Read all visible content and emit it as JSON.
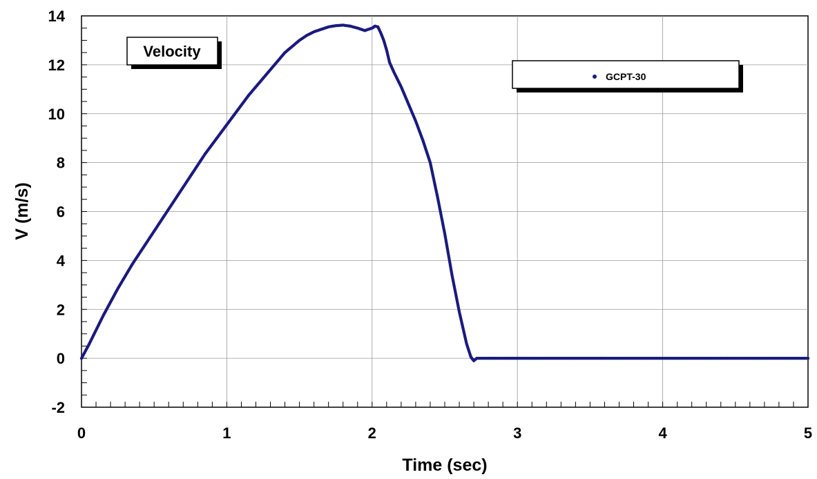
{
  "chart_data": {
    "type": "scatter",
    "title": "Velocity",
    "xlabel": "Time (sec)",
    "ylabel": "V (m/s)",
    "xlim": [
      0,
      5
    ],
    "ylim": [
      -2,
      14
    ],
    "x_ticks": [
      "0",
      "1",
      "2",
      "3",
      "4",
      "5"
    ],
    "y_ticks": [
      "-2",
      "0",
      "2",
      "4",
      "6",
      "8",
      "10",
      "12",
      "14"
    ],
    "grid": true,
    "legend_position": "top-right",
    "series": [
      {
        "name": "GCPT-30",
        "color": "#1a1a7e",
        "points": [
          [
            0.0,
            0.0
          ],
          [
            0.05,
            0.55
          ],
          [
            0.1,
            1.15
          ],
          [
            0.15,
            1.75
          ],
          [
            0.2,
            2.3
          ],
          [
            0.25,
            2.85
          ],
          [
            0.3,
            3.35
          ],
          [
            0.35,
            3.85
          ],
          [
            0.4,
            4.3
          ],
          [
            0.45,
            4.75
          ],
          [
            0.5,
            5.2
          ],
          [
            0.55,
            5.65
          ],
          [
            0.6,
            6.1
          ],
          [
            0.65,
            6.55
          ],
          [
            0.7,
            7.0
          ],
          [
            0.75,
            7.45
          ],
          [
            0.8,
            7.9
          ],
          [
            0.85,
            8.35
          ],
          [
            0.9,
            8.75
          ],
          [
            0.95,
            9.15
          ],
          [
            1.0,
            9.55
          ],
          [
            1.05,
            9.95
          ],
          [
            1.1,
            10.35
          ],
          [
            1.15,
            10.75
          ],
          [
            1.2,
            11.1
          ],
          [
            1.25,
            11.45
          ],
          [
            1.3,
            11.8
          ],
          [
            1.35,
            12.15
          ],
          [
            1.4,
            12.5
          ],
          [
            1.45,
            12.75
          ],
          [
            1.5,
            13.0
          ],
          [
            1.55,
            13.2
          ],
          [
            1.6,
            13.35
          ],
          [
            1.65,
            13.45
          ],
          [
            1.7,
            13.55
          ],
          [
            1.75,
            13.6
          ],
          [
            1.8,
            13.62
          ],
          [
            1.85,
            13.58
          ],
          [
            1.9,
            13.5
          ],
          [
            1.95,
            13.4
          ],
          [
            2.0,
            13.5
          ],
          [
            2.02,
            13.58
          ],
          [
            2.04,
            13.55
          ],
          [
            2.06,
            13.3
          ],
          [
            2.08,
            13.0
          ],
          [
            2.1,
            12.6
          ],
          [
            2.12,
            12.1
          ],
          [
            2.15,
            11.7
          ],
          [
            2.2,
            11.1
          ],
          [
            2.25,
            10.4
          ],
          [
            2.3,
            9.7
          ],
          [
            2.35,
            8.9
          ],
          [
            2.4,
            8.0
          ],
          [
            2.45,
            6.6
          ],
          [
            2.5,
            5.1
          ],
          [
            2.55,
            3.4
          ],
          [
            2.6,
            1.9
          ],
          [
            2.65,
            0.6
          ],
          [
            2.68,
            0.05
          ],
          [
            2.7,
            -0.1
          ],
          [
            2.72,
            0.0
          ],
          [
            2.8,
            0.0
          ],
          [
            3.0,
            0.0
          ],
          [
            3.5,
            0.0
          ],
          [
            4.0,
            0.0
          ],
          [
            4.5,
            0.0
          ],
          [
            5.0,
            0.0
          ]
        ]
      }
    ]
  }
}
